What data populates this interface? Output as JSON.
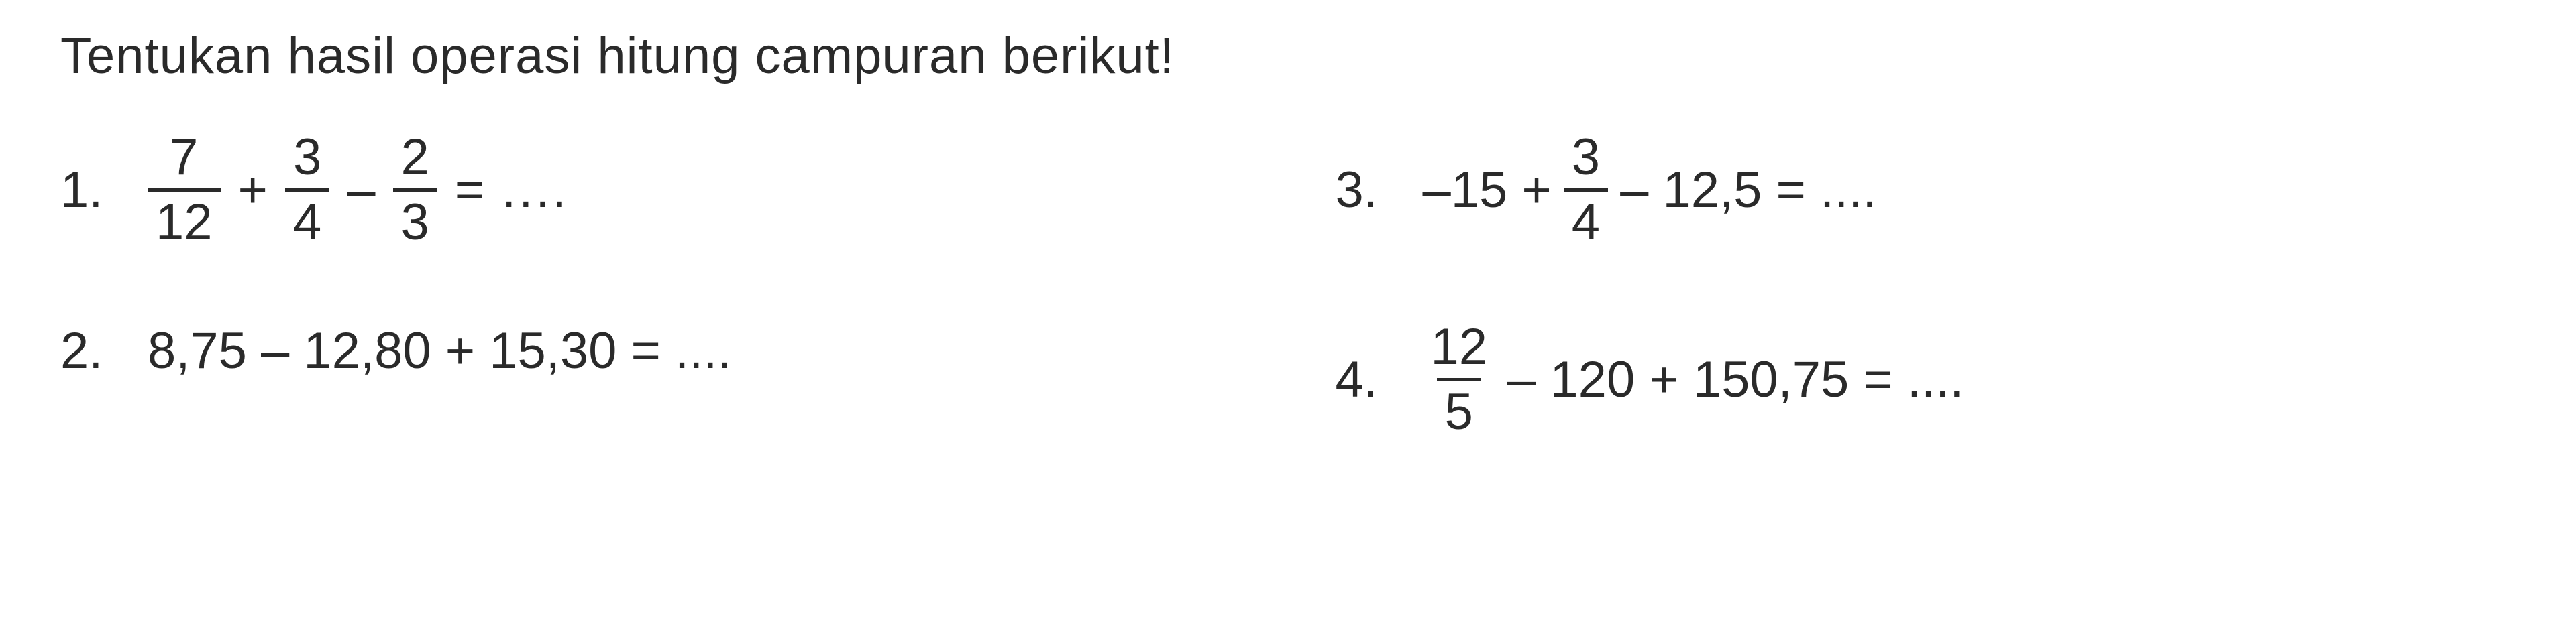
{
  "background_color": "#ffffff",
  "text_color": "#2a2a2a",
  "font_family": "Arial, Helvetica, sans-serif",
  "title_fontsize": 76,
  "problem_fontsize": 76,
  "fraction_bar_color": "#2a2a2a",
  "fraction_bar_width": 5,
  "title": "Tentukan hasil operasi hitung campuran berikut!",
  "problems": {
    "p1": {
      "number": "1.",
      "f1": {
        "num": "7",
        "den": "12"
      },
      "op1": "+",
      "f2": {
        "num": "3",
        "den": "4"
      },
      "op2": "–",
      "f3": {
        "num": "2",
        "den": "3"
      },
      "eq": "=",
      "dots": "...."
    },
    "p2": {
      "number": "2.",
      "text": "8,75 – 12,80 + 15,30 = ...."
    },
    "p3": {
      "number": "3.",
      "t1": "–15 +",
      "f1": {
        "num": "3",
        "den": "4"
      },
      "t2": "– 12,5 = ...."
    },
    "p4": {
      "number": "4.",
      "f1": {
        "num": "12",
        "den": "5"
      },
      "t1": "– 120 + 150,75 = ...."
    }
  }
}
